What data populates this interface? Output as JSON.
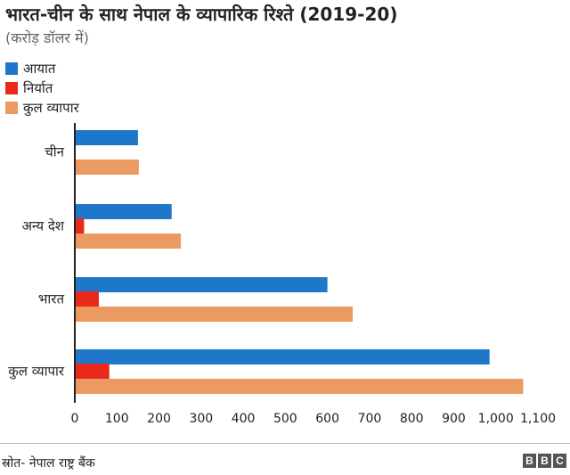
{
  "chart_data": {
    "type": "bar",
    "orientation": "horizontal",
    "title": "भारत-चीन के साथ नेपाल के व्यापारिक रिश्ते (2019-20)",
    "subtitle": "(करोड़ डॉलर में)",
    "categories": [
      "चीन",
      "अन्य देश",
      "भारत",
      "कुल व्यापार"
    ],
    "series": [
      {
        "name": "आयात",
        "color": "#1f77c9",
        "values": [
          150,
          230,
          600,
          985
        ]
      },
      {
        "name": "निर्यात",
        "color": "#e8291c",
        "values": [
          0,
          22,
          57,
          82
        ]
      },
      {
        "name": "कुल व्यापार",
        "color": "#eb9a62",
        "values": [
          152,
          252,
          660,
          1065
        ]
      }
    ],
    "xlim": [
      0,
      1100
    ],
    "xticks": [
      0,
      100,
      200,
      300,
      400,
      500,
      600,
      700,
      800,
      900,
      1000,
      1100
    ],
    "xtick_labels": [
      "0",
      "100",
      "200",
      "300",
      "400",
      "500",
      "600",
      "700",
      "800",
      "900",
      "1,000",
      "1,100"
    ],
    "grid": false,
    "legend_position": "top-left"
  },
  "footer": {
    "source": "स्रोत- नेपाल राष्ट्र बैंक",
    "logo_letters": [
      "B",
      "B",
      "C"
    ]
  }
}
